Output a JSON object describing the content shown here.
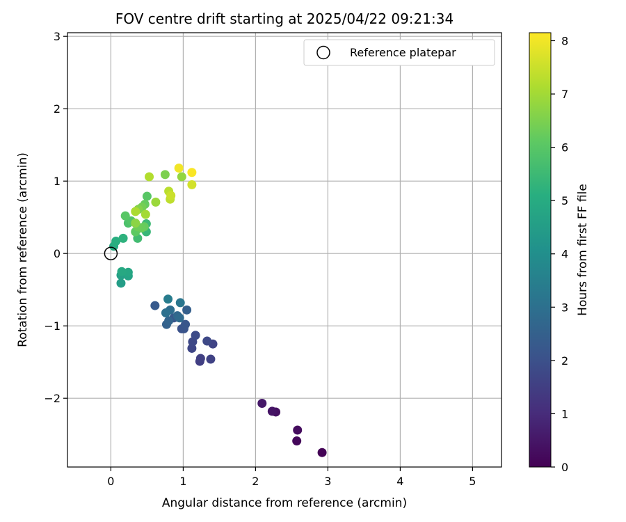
{
  "chart_data": {
    "type": "scatter",
    "title": "FOV centre drift starting at 2025/04/22 09:21:34",
    "xlabel": "Angular distance from reference (arcmin)",
    "ylabel": "Rotation from reference (arcmin)",
    "xlim": [
      -0.6,
      5.4
    ],
    "ylim": [
      -2.95,
      3.05
    ],
    "xticks": [
      0,
      1,
      2,
      3,
      4,
      5
    ],
    "xtick_labels": [
      "0",
      "1",
      "2",
      "3",
      "4",
      "5"
    ],
    "yticks": [
      -2,
      -1,
      0,
      1,
      2,
      3
    ],
    "ytick_labels": [
      "−2",
      "−1",
      "0",
      "1",
      "2",
      "3"
    ],
    "grid": true,
    "colormap": "viridis",
    "colorbar": {
      "label": "Hours from first FF file",
      "range": [
        0,
        8.15
      ],
      "ticks": [
        0,
        1,
        2,
        3,
        4,
        5,
        6,
        7,
        8
      ],
      "tick_labels": [
        "0",
        "1",
        "2",
        "3",
        "4",
        "5",
        "6",
        "7",
        "8"
      ]
    },
    "legend": {
      "position": "top-right",
      "entries": [
        "Reference platepar"
      ]
    },
    "reference_point": {
      "x": 0,
      "y": 0,
      "style": "hollow-circle"
    },
    "points": [
      {
        "x": 2.92,
        "y": -2.75,
        "c": 0.05
      },
      {
        "x": 2.57,
        "y": -2.59,
        "c": 0.15
      },
      {
        "x": 2.58,
        "y": -2.44,
        "c": 0.25
      },
      {
        "x": 2.28,
        "y": -2.19,
        "c": 0.35
      },
      {
        "x": 2.23,
        "y": -2.18,
        "c": 0.45
      },
      {
        "x": 2.09,
        "y": -2.07,
        "c": 0.55
      },
      {
        "x": 1.38,
        "y": -1.46,
        "c": 1.6
      },
      {
        "x": 1.23,
        "y": -1.49,
        "c": 1.5
      },
      {
        "x": 1.24,
        "y": -1.45,
        "c": 1.55
      },
      {
        "x": 1.12,
        "y": -1.31,
        "c": 1.7
      },
      {
        "x": 1.13,
        "y": -1.22,
        "c": 1.75
      },
      {
        "x": 1.41,
        "y": -1.25,
        "c": 1.65
      },
      {
        "x": 1.33,
        "y": -1.21,
        "c": 1.8
      },
      {
        "x": 1.17,
        "y": -1.13,
        "c": 1.85
      },
      {
        "x": 0.98,
        "y": -1.04,
        "c": 2.0
      },
      {
        "x": 1.01,
        "y": -1.04,
        "c": 2.1
      },
      {
        "x": 1.03,
        "y": -0.98,
        "c": 2.15
      },
      {
        "x": 0.87,
        "y": -0.89,
        "c": 2.2
      },
      {
        "x": 0.61,
        "y": -0.72,
        "c": 2.3
      },
      {
        "x": 1.05,
        "y": -0.78,
        "c": 2.45
      },
      {
        "x": 0.77,
        "y": -0.98,
        "c": 2.5
      },
      {
        "x": 0.8,
        "y": -0.93,
        "c": 2.6
      },
      {
        "x": 0.92,
        "y": -0.86,
        "c": 2.7
      },
      {
        "x": 0.95,
        "y": -0.89,
        "c": 2.8
      },
      {
        "x": 0.82,
        "y": -0.78,
        "c": 2.9
      },
      {
        "x": 0.76,
        "y": -0.82,
        "c": 3.0
      },
      {
        "x": 0.96,
        "y": -0.68,
        "c": 3.2
      },
      {
        "x": 0.79,
        "y": -0.63,
        "c": 3.4
      },
      {
        "x": 0.14,
        "y": -0.41,
        "c": 4.5
      },
      {
        "x": 0.14,
        "y": -0.3,
        "c": 4.6
      },
      {
        "x": 0.24,
        "y": -0.31,
        "c": 4.7
      },
      {
        "x": 0.24,
        "y": -0.26,
        "c": 4.8
      },
      {
        "x": 0.15,
        "y": -0.25,
        "c": 4.9
      },
      {
        "x": 0.04,
        "y": 0.1,
        "c": 5.0
      },
      {
        "x": 0.07,
        "y": 0.17,
        "c": 5.1
      },
      {
        "x": 0.17,
        "y": 0.21,
        "c": 5.2
      },
      {
        "x": 0.49,
        "y": 0.3,
        "c": 5.4
      },
      {
        "x": 0.49,
        "y": 0.41,
        "c": 5.5
      },
      {
        "x": 0.37,
        "y": 0.21,
        "c": 5.6
      },
      {
        "x": 0.24,
        "y": 0.42,
        "c": 5.8
      },
      {
        "x": 0.28,
        "y": 0.45,
        "c": 5.9
      },
      {
        "x": 0.2,
        "y": 0.52,
        "c": 6.0
      },
      {
        "x": 0.34,
        "y": 0.3,
        "c": 6.1
      },
      {
        "x": 0.46,
        "y": 0.37,
        "c": 6.2
      },
      {
        "x": 0.42,
        "y": 0.35,
        "c": 6.25
      },
      {
        "x": 0.37,
        "y": 0.37,
        "c": 6.3
      },
      {
        "x": 0.5,
        "y": 0.79,
        "c": 6.0
      },
      {
        "x": 0.47,
        "y": 0.68,
        "c": 6.2
      },
      {
        "x": 0.43,
        "y": 0.64,
        "c": 6.4
      },
      {
        "x": 0.38,
        "y": 0.61,
        "c": 6.6
      },
      {
        "x": 0.34,
        "y": 0.42,
        "c": 6.7
      },
      {
        "x": 0.75,
        "y": 1.09,
        "c": 6.5
      },
      {
        "x": 0.98,
        "y": 1.06,
        "c": 6.8
      },
      {
        "x": 0.62,
        "y": 0.71,
        "c": 6.9
      },
      {
        "x": 0.48,
        "y": 0.54,
        "c": 7.0
      },
      {
        "x": 0.34,
        "y": 0.58,
        "c": 7.1
      },
      {
        "x": 0.53,
        "y": 1.06,
        "c": 7.2
      },
      {
        "x": 0.8,
        "y": 0.86,
        "c": 7.3
      },
      {
        "x": 0.82,
        "y": 0.75,
        "c": 7.35
      },
      {
        "x": 0.83,
        "y": 0.8,
        "c": 7.5
      },
      {
        "x": 1.12,
        "y": 0.95,
        "c": 7.6
      },
      {
        "x": 0.94,
        "y": 1.18,
        "c": 8.0
      },
      {
        "x": 1.12,
        "y": 1.12,
        "c": 8.1
      }
    ]
  }
}
